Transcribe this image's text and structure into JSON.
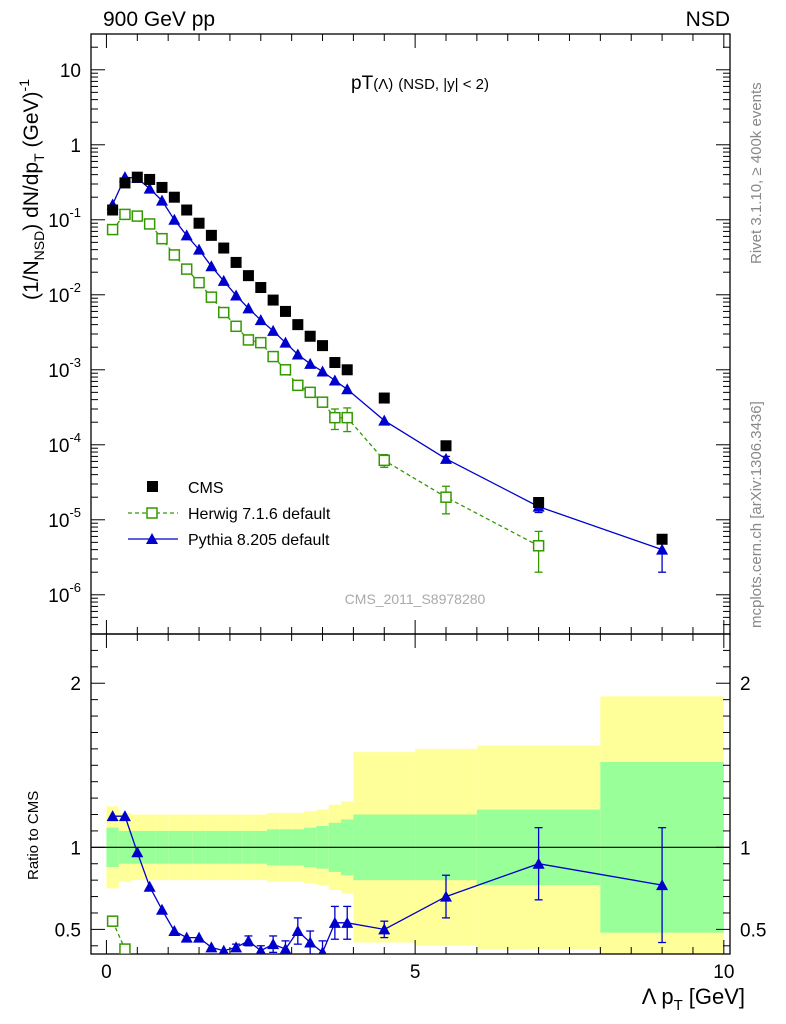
{
  "header": {
    "left": "900 GeV pp",
    "right": "NSD"
  },
  "side_labels": {
    "rivet": "Rivet 3.1.10, ≥ 400k events",
    "mcplots": "mcplots.cern.ch [arXiv:1306.3436]"
  },
  "watermark": "CMS_2011_S8978280",
  "chart_data": [
    {
      "type": "scatter",
      "panel": "main",
      "title": "pT(Λ) (NSD, |y| < 2)",
      "title_main": "pT",
      "title_paren": "(Λ)",
      "title_rest": "(NSD, |y| < 2)",
      "xlabel": "Λ p_T [GeV]",
      "xlabel_main": "Λ p",
      "xlabel_sub": "T",
      "xlabel_unit": "[GeV]",
      "ylabel": "(1/N_NSD) dN/dp_T (GeV)^-1",
      "ylabel_parts": {
        "a": "(1/N",
        "a_sub": "NSD",
        "b": ") dN/dp",
        "b_sub": "T",
        "c": " (GeV)",
        "c_sup": "-1"
      },
      "yscale": "log",
      "xlim": [
        -0.25,
        10.1
      ],
      "ylim": [
        3e-07,
        30
      ],
      "yticks": [
        {
          "value": 10,
          "mant": "10",
          "exp": ""
        },
        {
          "value": 1,
          "mant": "1",
          "exp": ""
        },
        {
          "value": 0.1,
          "mant": "10",
          "exp": "-1"
        },
        {
          "value": 0.01,
          "mant": "10",
          "exp": "-2"
        },
        {
          "value": 0.001,
          "mant": "10",
          "exp": "-3"
        },
        {
          "value": 0.0001,
          "mant": "10",
          "exp": "-4"
        },
        {
          "value": 1e-05,
          "mant": "10",
          "exp": "-5"
        },
        {
          "value": 1e-06,
          "mant": "10",
          "exp": "-6"
        }
      ],
      "legend_position": "bottom-left",
      "series": [
        {
          "name": "CMS",
          "marker": "filled-square",
          "color": "#000000",
          "x": [
            0.1,
            0.3,
            0.5,
            0.7,
            0.9,
            1.1,
            1.3,
            1.5,
            1.7,
            1.9,
            2.1,
            2.3,
            2.5,
            2.7,
            2.9,
            3.1,
            3.3,
            3.5,
            3.7,
            3.9,
            4.5,
            5.5,
            7.0,
            9.0
          ],
          "y": [
            0.135,
            0.31,
            0.37,
            0.345,
            0.27,
            0.2,
            0.135,
            0.09,
            0.062,
            0.042,
            0.027,
            0.018,
            0.0125,
            0.0085,
            0.006,
            0.004,
            0.0028,
            0.0021,
            0.00125,
            0.001,
            0.00042,
            9.7e-05,
            1.7e-05,
            5.5e-06
          ]
        },
        {
          "name": "Herwig 7.1.6 default",
          "marker": "open-square",
          "line": "dashed",
          "color": "#339900",
          "x": [
            0.1,
            0.3,
            0.5,
            0.7,
            0.9,
            1.1,
            1.3,
            1.5,
            1.7,
            1.9,
            2.1,
            2.3,
            2.5,
            2.7,
            2.9,
            3.1,
            3.3,
            3.5,
            3.7,
            3.9,
            4.5,
            5.5,
            7.0
          ],
          "y": [
            0.074,
            0.118,
            0.112,
            0.088,
            0.056,
            0.034,
            0.022,
            0.0145,
            0.0093,
            0.0058,
            0.0038,
            0.0025,
            0.0023,
            0.0015,
            0.001,
            0.00062,
            0.0005,
            0.00037,
            0.00023,
            0.00023,
            6.2e-05,
            2e-05,
            4.5e-06
          ],
          "yerr": [
            0,
            0,
            0,
            0,
            0,
            0,
            0,
            0,
            0,
            0,
            0,
            0,
            0,
            0,
            0,
            5e-05,
            5e-05,
            5e-05,
            7e-05,
            8e-05,
            1.2e-05,
            8e-06,
            2.5e-06
          ]
        },
        {
          "name": "Pythia 8.205 default",
          "marker": "filled-triangle",
          "line": "solid",
          "color": "#0000cc",
          "x": [
            0.1,
            0.3,
            0.5,
            0.7,
            0.9,
            1.1,
            1.3,
            1.5,
            1.7,
            1.9,
            2.1,
            2.3,
            2.5,
            2.7,
            2.9,
            3.1,
            3.3,
            3.5,
            3.7,
            3.9,
            4.5,
            5.5,
            7.0,
            9.0
          ],
          "y": [
            0.16,
            0.37,
            0.36,
            0.26,
            0.18,
            0.1,
            0.062,
            0.04,
            0.024,
            0.0153,
            0.0098,
            0.0066,
            0.0046,
            0.0033,
            0.0023,
            0.0016,
            0.0012,
            0.00095,
            0.00072,
            0.00055,
            0.00021,
            6.5e-05,
            1.5e-05,
            4e-06
          ],
          "yerr": [
            0,
            0,
            0,
            0,
            0,
            0,
            0,
            0,
            0,
            0,
            0,
            0,
            0,
            0,
            0,
            0,
            0,
            0,
            0,
            0,
            0,
            5e-06,
            2.5e-06,
            2e-06
          ]
        }
      ]
    },
    {
      "type": "scatter",
      "panel": "ratio",
      "ylabel": "Ratio to CMS",
      "xlim": [
        -0.25,
        10.1
      ],
      "ylim": [
        0.35,
        2.3
      ],
      "yticks": [
        0.5,
        1,
        2
      ],
      "xticks": [
        0,
        5,
        10
      ],
      "reference_line": 1,
      "bands": {
        "edges": [
          0,
          0.2,
          0.4,
          0.6,
          0.8,
          1.0,
          1.2,
          1.4,
          1.6,
          1.8,
          2.0,
          2.2,
          2.4,
          2.6,
          2.8,
          3.0,
          3.2,
          3.4,
          3.6,
          3.8,
          4.0,
          5.0,
          6.0,
          8.0,
          10.0
        ],
        "yellow_half_width": [
          0.25,
          0.21,
          0.2,
          0.2,
          0.2,
          0.2,
          0.2,
          0.2,
          0.2,
          0.2,
          0.2,
          0.2,
          0.2,
          0.21,
          0.21,
          0.21,
          0.22,
          0.23,
          0.26,
          0.28,
          0.58,
          0.6,
          0.62,
          0.92
        ],
        "green_half_width": [
          0.12,
          0.1,
          0.1,
          0.1,
          0.1,
          0.1,
          0.1,
          0.1,
          0.1,
          0.1,
          0.1,
          0.1,
          0.1,
          0.11,
          0.11,
          0.11,
          0.12,
          0.13,
          0.15,
          0.17,
          0.2,
          0.2,
          0.23,
          0.52
        ]
      },
      "series": [
        {
          "name": "Herwig 7.1.6 default",
          "marker": "open-square",
          "color": "#339900",
          "x": [
            0.1,
            0.3
          ],
          "y": [
            0.55,
            0.38
          ]
        },
        {
          "name": "Pythia 8.205 default",
          "marker": "filled-triangle",
          "color": "#0000cc",
          "x": [
            0.1,
            0.3,
            0.5,
            0.7,
            0.9,
            1.1,
            1.3,
            1.5,
            1.7,
            1.9,
            2.1,
            2.3,
            2.5,
            2.7,
            2.9,
            3.1,
            3.3,
            3.5,
            3.7,
            3.9,
            4.5,
            5.5,
            7.0,
            9.0
          ],
          "y": [
            1.19,
            1.19,
            0.97,
            0.76,
            0.62,
            0.49,
            0.45,
            0.45,
            0.39,
            0.37,
            0.39,
            0.43,
            0.37,
            0.41,
            0.38,
            0.49,
            0.42,
            0.36,
            0.54,
            0.54,
            0.5,
            0.7,
            0.9,
            0.77
          ],
          "yerr": [
            0,
            0,
            0,
            0,
            0,
            0,
            0,
            0,
            0,
            0,
            0.02,
            0.03,
            0.03,
            0.05,
            0.05,
            0.08,
            0.07,
            0.07,
            0.1,
            0.1,
            0.05,
            0.13,
            0.22,
            0.35
          ]
        }
      ]
    }
  ]
}
